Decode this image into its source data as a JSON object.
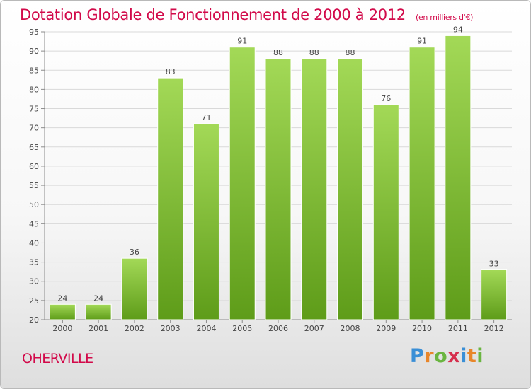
{
  "chart_data": {
    "type": "bar",
    "title": "Dotation Globale de Fonctionnement de 2000 à 2012",
    "subtitle": "(en milliers d'€)",
    "categories": [
      "2000",
      "2001",
      "2002",
      "2003",
      "2004",
      "2005",
      "2006",
      "2007",
      "2008",
      "2009",
      "2010",
      "2011",
      "2012"
    ],
    "values": [
      24,
      24,
      36,
      83,
      71,
      91,
      88,
      88,
      88,
      76,
      91,
      94,
      33
    ],
    "ylim": [
      20,
      95
    ],
    "yticks": [
      "20",
      "25",
      "30",
      "35",
      "40",
      "45",
      "50",
      "55",
      "60",
      "65",
      "70",
      "75",
      "80",
      "85",
      "90",
      "95"
    ],
    "grid": true,
    "bar_color": "#7fc233",
    "bar_color_light": "#a3d957",
    "bar_color_dark": "#5e9c19"
  },
  "footer": {
    "commune": "OHERVILLE",
    "brand": "Proxiti",
    "brand_letters": [
      "P",
      "r",
      "o",
      "x",
      "i",
      "t",
      "i"
    ],
    "brand_colors": [
      "#3a8fd6",
      "#e8862a",
      "#6ab540",
      "#d6304e",
      "#3a8fd6",
      "#e8862a",
      "#6ab540"
    ]
  },
  "colors": {
    "title": "#d20a4a",
    "grid": "#d9d9d9",
    "axis": "#8c8c8c"
  }
}
